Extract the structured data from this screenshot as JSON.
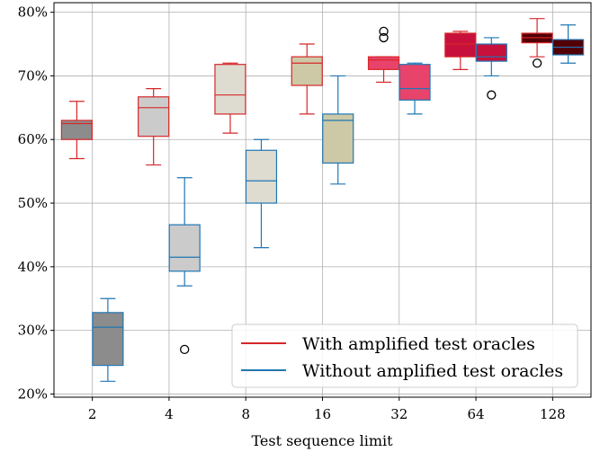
{
  "chart_data": {
    "type": "box",
    "title": "",
    "xlabel": "Test sequence limit",
    "ylabel": "",
    "categories": [
      "2",
      "4",
      "8",
      "16",
      "32",
      "64",
      "128"
    ],
    "y_ticks": [
      "20%",
      "30%",
      "40%",
      "50%",
      "60%",
      "70%",
      "80%"
    ],
    "ylim": [
      19.5,
      81.5
    ],
    "grid": true,
    "legend_position": "lower-right",
    "series": [
      {
        "name": "With amplified test oracles",
        "edge_color": "#d62728",
        "boxes": [
          {
            "whisker_low": 57,
            "q1": 60,
            "median": 62.5,
            "q3": 63,
            "whisker_high": 66,
            "fill": "#8c8c8c",
            "outliers": []
          },
          {
            "whisker_low": 56,
            "q1": 60.5,
            "median": 65,
            "q3": 66.7,
            "whisker_high": 68,
            "fill": "#cbcbcb",
            "outliers": []
          },
          {
            "whisker_low": 61,
            "q1": 64,
            "median": 67,
            "q3": 71.8,
            "whisker_high": 72,
            "fill": "#dedbd0",
            "outliers": []
          },
          {
            "whisker_low": 64,
            "q1": 68.5,
            "median": 72,
            "q3": 73,
            "whisker_high": 75,
            "fill": "#cdc9a6",
            "outliers": []
          },
          {
            "whisker_low": 69,
            "q1": 71,
            "median": 72.5,
            "q3": 73,
            "whisker_high": 73,
            "fill": "#e8436a",
            "outliers": [
              76,
              77
            ]
          },
          {
            "whisker_low": 71,
            "q1": 73,
            "median": 75,
            "q3": 76.7,
            "whisker_high": 77,
            "fill": "#c8103c",
            "outliers": []
          },
          {
            "whisker_low": 73,
            "q1": 75.2,
            "median": 76,
            "q3": 76.7,
            "whisker_high": 79,
            "fill": "#520006",
            "outliers": [
              72
            ]
          }
        ]
      },
      {
        "name": "Without amplified test oracles",
        "edge_color": "#1f77b4",
        "boxes": [
          {
            "whisker_low": 22,
            "q1": 24.5,
            "median": 30.5,
            "q3": 32.8,
            "whisker_high": 35,
            "fill": "#8c8c8c",
            "outliers": []
          },
          {
            "whisker_low": 37,
            "q1": 39.3,
            "median": 41.5,
            "q3": 46.6,
            "whisker_high": 54,
            "fill": "#cbcbcb",
            "outliers": [
              27
            ]
          },
          {
            "whisker_low": 43,
            "q1": 50,
            "median": 53.5,
            "q3": 58.3,
            "whisker_high": 60,
            "fill": "#dedbd0",
            "outliers": []
          },
          {
            "whisker_low": 53,
            "q1": 56.3,
            "median": 63,
            "q3": 64,
            "whisker_high": 70,
            "fill": "#cdc9a6",
            "outliers": []
          },
          {
            "whisker_low": 64,
            "q1": 66.2,
            "median": 68,
            "q3": 71.8,
            "whisker_high": 72,
            "fill": "#e8436a",
            "outliers": []
          },
          {
            "whisker_low": 70,
            "q1": 72.3,
            "median": 73,
            "q3": 75,
            "whisker_high": 76,
            "fill": "#c8103c",
            "outliers": [
              67
            ]
          },
          {
            "whisker_low": 72,
            "q1": 73.3,
            "median": 74.5,
            "q3": 75.7,
            "whisker_high": 78,
            "fill": "#520006",
            "outliers": []
          }
        ]
      }
    ]
  }
}
